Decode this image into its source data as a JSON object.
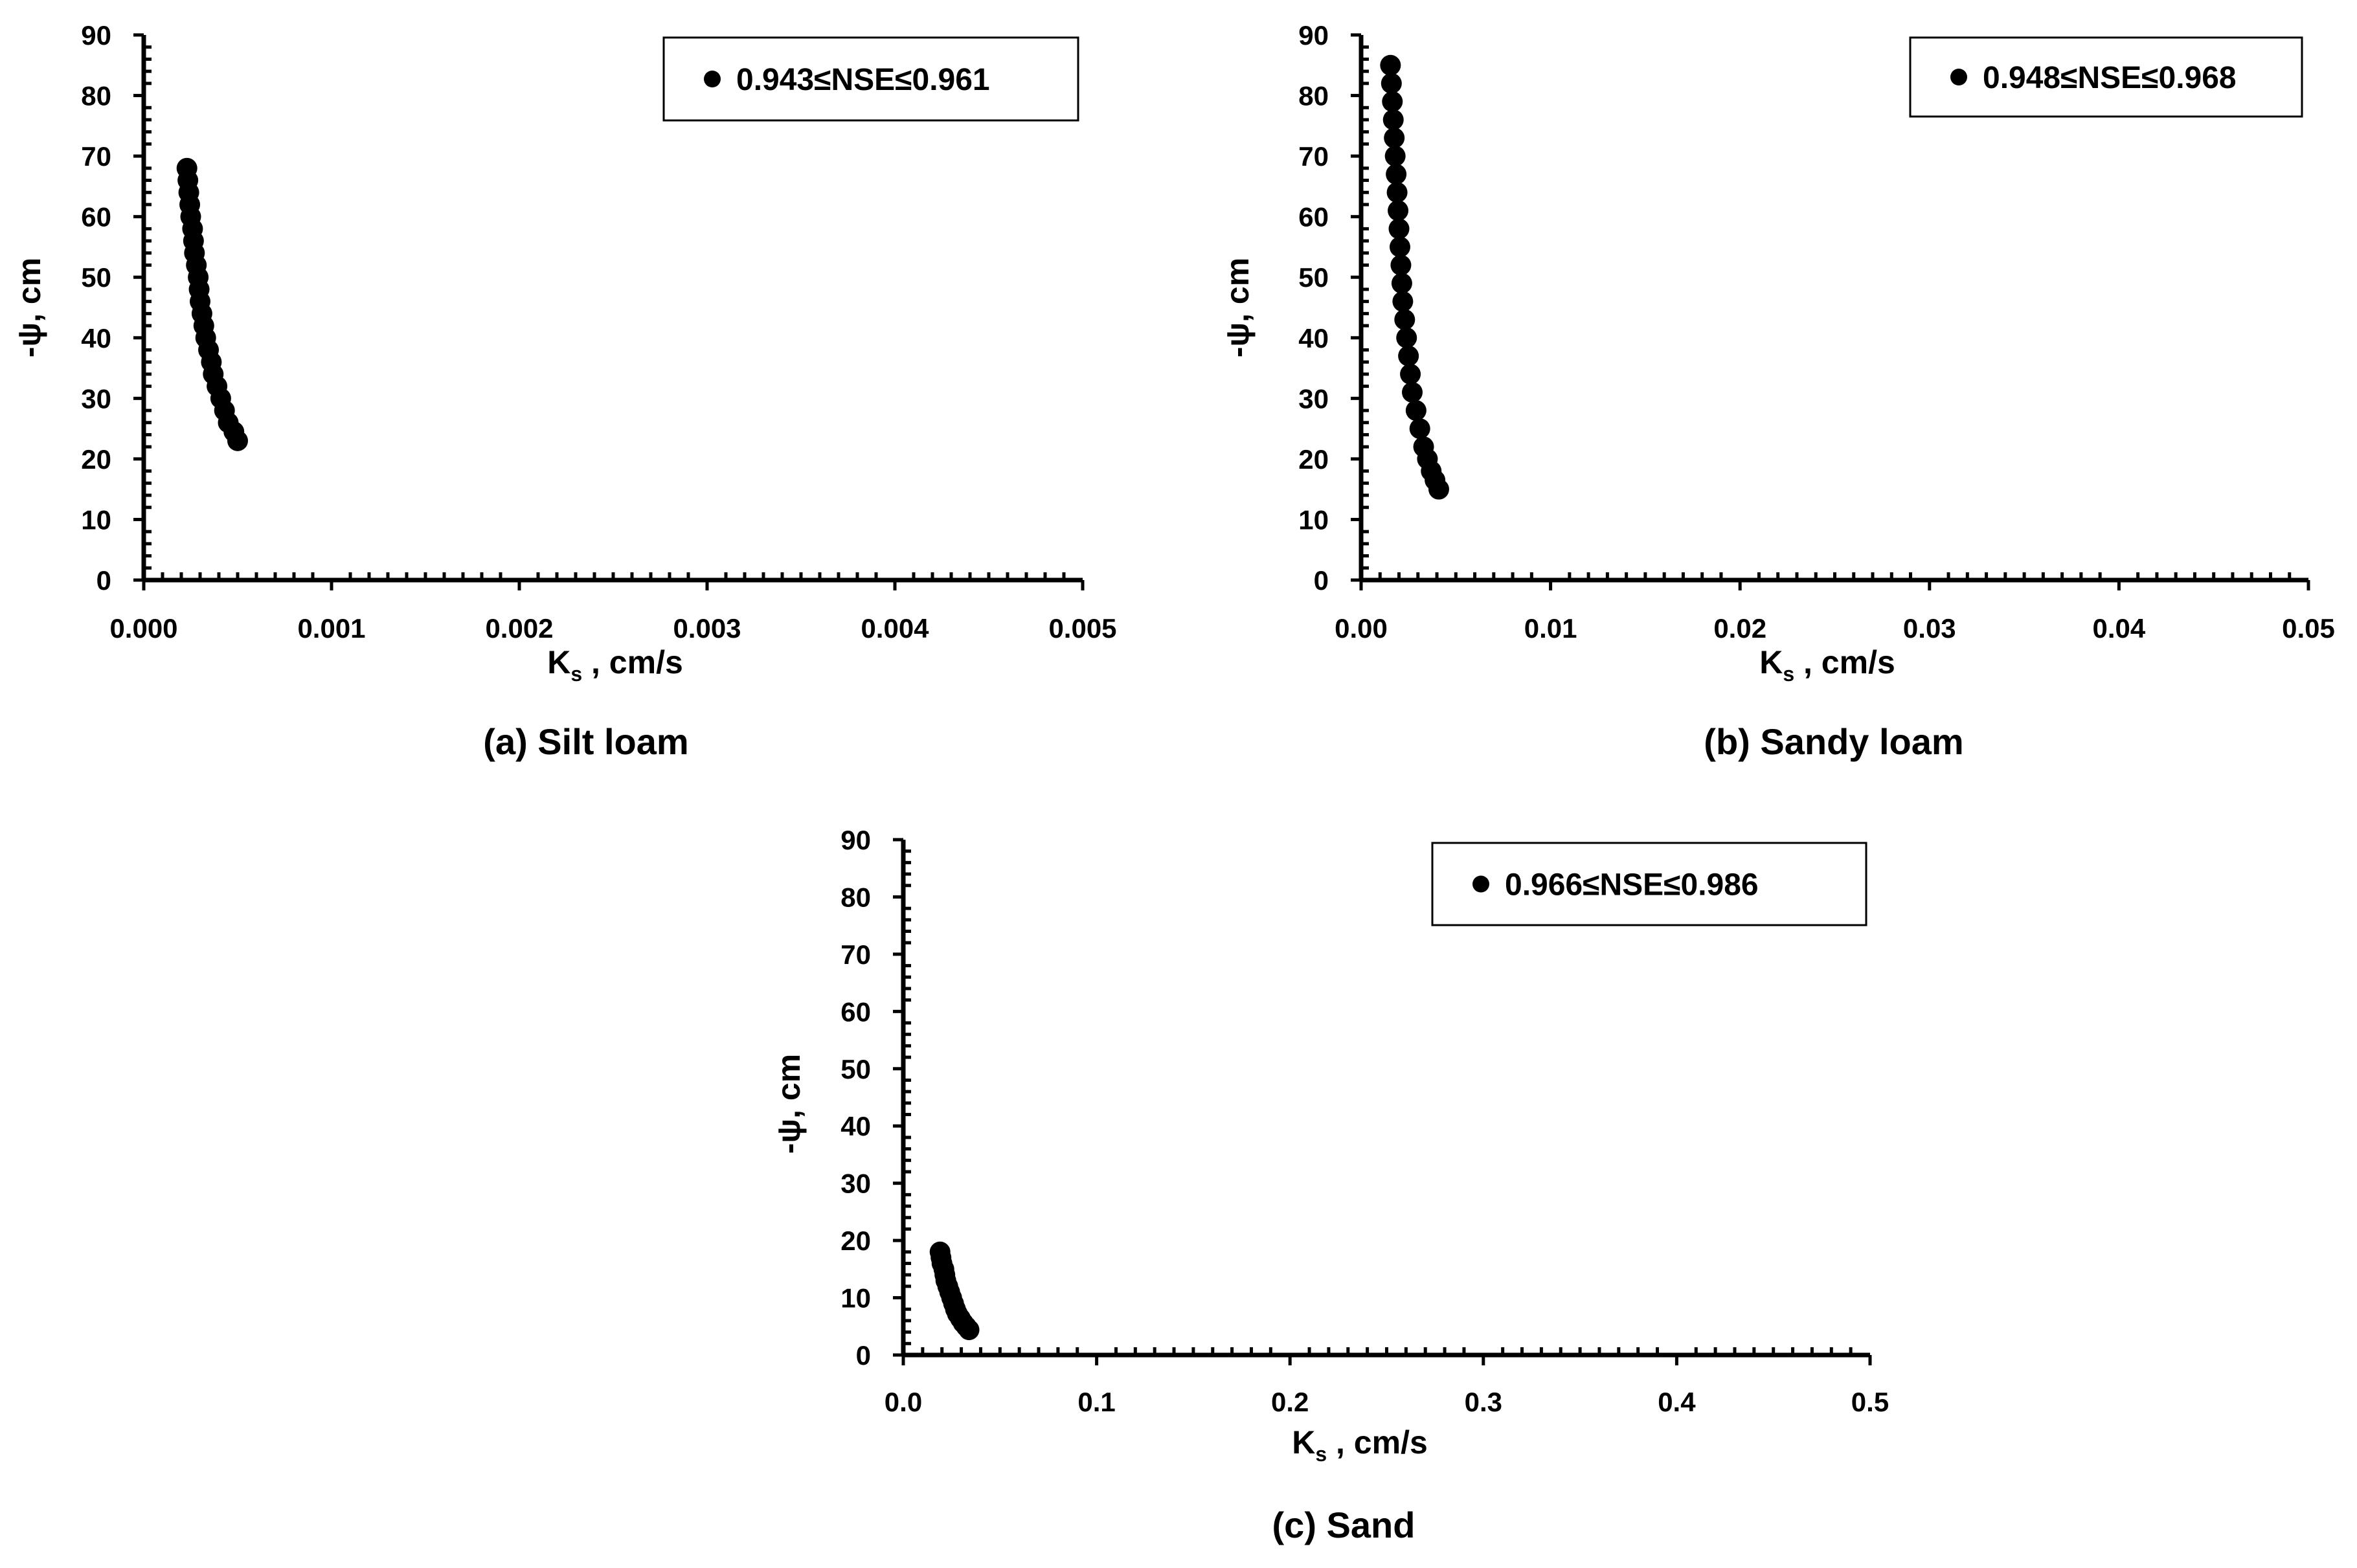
{
  "chart_data": [
    {
      "type": "scatter",
      "caption": "(a) Silt loam",
      "xlabel_main": "K",
      "xlabel_sub": "s",
      "xlabel_rest": " , cm/s",
      "ylabel": "-ψ, cm",
      "xlim": [
        0,
        0.005
      ],
      "ylim": [
        0,
        90
      ],
      "xticks": [
        "0.000",
        "0.001",
        "0.002",
        "0.003",
        "0.004",
        "0.005"
      ],
      "yticks": [
        "0",
        "10",
        "20",
        "30",
        "40",
        "50",
        "60",
        "70",
        "80",
        "90"
      ],
      "grid": false,
      "legend": "top-right",
      "marker_color": "#000000",
      "series": [
        {
          "name": "0.943≤NSE≤0.961",
          "points": [
            [
              0.00023,
              68
            ],
            [
              0.000235,
              66
            ],
            [
              0.00024,
              64
            ],
            [
              0.000245,
              62
            ],
            [
              0.00025,
              60
            ],
            [
              0.00026,
              58
            ],
            [
              0.000265,
              56
            ],
            [
              0.00027,
              54
            ],
            [
              0.00028,
              52
            ],
            [
              0.00029,
              50
            ],
            [
              0.000295,
              48
            ],
            [
              0.0003,
              46
            ],
            [
              0.00031,
              44
            ],
            [
              0.00032,
              42
            ],
            [
              0.00033,
              40
            ],
            [
              0.000345,
              38
            ],
            [
              0.00036,
              36
            ],
            [
              0.00037,
              34
            ],
            [
              0.00039,
              32
            ],
            [
              0.00041,
              30
            ],
            [
              0.00043,
              28
            ],
            [
              0.00045,
              26
            ],
            [
              0.00048,
              24.5
            ],
            [
              0.0005,
              23
            ]
          ]
        }
      ]
    },
    {
      "type": "scatter",
      "caption": "(b) Sandy loam",
      "xlabel_main": "K",
      "xlabel_sub": "s",
      "xlabel_rest": " , cm/s",
      "ylabel": "-ψ, cm",
      "xlim": [
        0,
        0.05
      ],
      "ylim": [
        0,
        90
      ],
      "xticks": [
        "0.00",
        "0.01",
        "0.02",
        "0.03",
        "0.04",
        "0.05"
      ],
      "yticks": [
        "0",
        "10",
        "20",
        "30",
        "40",
        "50",
        "60",
        "70",
        "80",
        "90"
      ],
      "grid": false,
      "legend": "top-right",
      "marker_color": "#000000",
      "series": [
        {
          "name": "0.948≤NSE≤0.968",
          "points": [
            [
              0.00155,
              85
            ],
            [
              0.0016,
              82
            ],
            [
              0.00165,
              79
            ],
            [
              0.0017,
              76
            ],
            [
              0.00175,
              73
            ],
            [
              0.0018,
              70
            ],
            [
              0.00185,
              67
            ],
            [
              0.0019,
              64
            ],
            [
              0.00195,
              61
            ],
            [
              0.002,
              58
            ],
            [
              0.00205,
              55
            ],
            [
              0.0021,
              52
            ],
            [
              0.00215,
              49
            ],
            [
              0.0022,
              46
            ],
            [
              0.0023,
              43
            ],
            [
              0.0024,
              40
            ],
            [
              0.0025,
              37
            ],
            [
              0.0026,
              34
            ],
            [
              0.0027,
              31
            ],
            [
              0.0029,
              28
            ],
            [
              0.0031,
              25
            ],
            [
              0.0033,
              22
            ],
            [
              0.0035,
              20
            ],
            [
              0.0037,
              18
            ],
            [
              0.0039,
              16.5
            ],
            [
              0.0041,
              15
            ]
          ]
        }
      ]
    },
    {
      "type": "scatter",
      "caption": "(c) Sand",
      "xlabel_main": "K",
      "xlabel_sub": "s",
      "xlabel_rest": " , cm/s",
      "ylabel": "-ψ, cm",
      "xlim": [
        0,
        0.5
      ],
      "ylim": [
        0,
        90
      ],
      "xticks": [
        "0.0",
        "0.1",
        "0.2",
        "0.3",
        "0.4",
        "0.5"
      ],
      "yticks": [
        "0",
        "10",
        "20",
        "30",
        "40",
        "50",
        "60",
        "70",
        "80",
        "90"
      ],
      "grid": false,
      "legend": "top-right",
      "marker_color": "#000000",
      "series": [
        {
          "name": "0.966≤NSE≤0.986",
          "points": [
            [
              0.019,
              18
            ],
            [
              0.0195,
              17
            ],
            [
              0.02,
              16
            ],
            [
              0.021,
              15
            ],
            [
              0.0215,
              14
            ],
            [
              0.022,
              13
            ],
            [
              0.023,
              12
            ],
            [
              0.024,
              11
            ],
            [
              0.025,
              10
            ],
            [
              0.026,
              9
            ],
            [
              0.027,
              8
            ],
            [
              0.028,
              7.2
            ],
            [
              0.0295,
              6.4
            ],
            [
              0.031,
              5.6
            ],
            [
              0.0325,
              5
            ],
            [
              0.034,
              4.4
            ]
          ]
        }
      ]
    }
  ]
}
